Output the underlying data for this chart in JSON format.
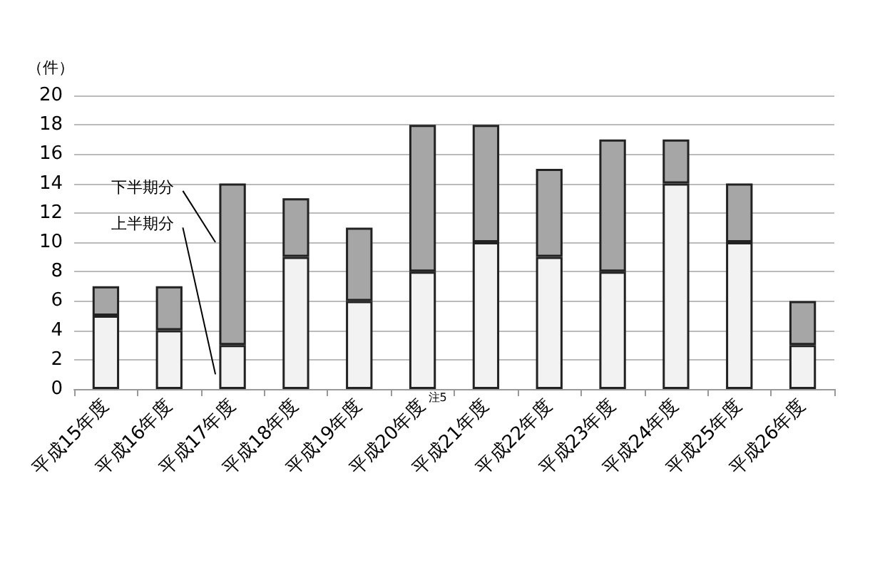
{
  "chart_data": {
    "type": "bar",
    "stacked": true,
    "ylabel": "（件）",
    "categories": [
      "平成15年度",
      "平成16年度",
      "平成17年度",
      "平成18年度",
      "平成19年度",
      "平成20年度",
      "平成21年度",
      "平成22年度",
      "平成23年度",
      "平成24年度",
      "平成25年度",
      "平成26年度"
    ],
    "series": [
      {
        "name": "上半期分",
        "color": "#f2f2f2",
        "values": [
          5,
          4,
          3,
          9,
          6,
          8,
          10,
          9,
          8,
          14,
          10,
          3
        ]
      },
      {
        "name": "下半期分",
        "color": "#a6a6a6",
        "values": [
          2,
          3,
          11,
          4,
          5,
          10,
          8,
          6,
          9,
          3,
          4,
          3
        ]
      }
    ],
    "ylim": [
      0,
      20
    ],
    "yticks": [
      0,
      2,
      4,
      6,
      8,
      10,
      12,
      14,
      16,
      18,
      20
    ],
    "grid": "y",
    "legend": false,
    "annotations": [
      {
        "text": "注5",
        "x": "平成20年度",
        "y": 0
      }
    ]
  }
}
